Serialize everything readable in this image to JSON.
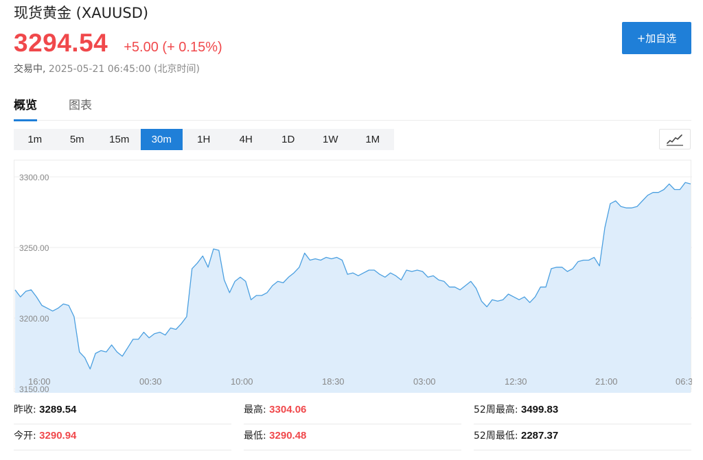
{
  "header": {
    "title": "现货黄金 (XAUUSD)",
    "price": "3294.54",
    "change": "+5.00 (+ 0.15%)",
    "status": "交易中,",
    "time": "2025-05-21 06:45:00 (北京时间)",
    "add_button": "+加自选"
  },
  "tabs": [
    {
      "label": "概览"
    },
    {
      "label": "图表"
    }
  ],
  "intervals": [
    "1m",
    "5m",
    "15m",
    "30m",
    "1H",
    "4H",
    "1D",
    "1W",
    "1M"
  ],
  "active_interval": "30m",
  "chart_type_icon": "line-chart-icon",
  "chart_data": {
    "type": "area",
    "ylim": [
      3150,
      3310
    ],
    "y_ticks": [
      "3150.00",
      "3200.00",
      "3250.00",
      "3300.00"
    ],
    "x_ticks": [
      "16:00",
      "00:30",
      "10:00",
      "18:30",
      "03:00",
      "12:30",
      "21:00",
      "06:3"
    ],
    "values": [
      3220,
      3215,
      3219,
      3220,
      3215,
      3209,
      3207,
      3205,
      3207,
      3210,
      3209,
      3201,
      3176,
      3172,
      3164,
      3175,
      3177,
      3176,
      3181,
      3176,
      3173,
      3179,
      3185,
      3185,
      3190,
      3186,
      3189,
      3190,
      3188,
      3193,
      3192,
      3196,
      3201,
      3235,
      3239,
      3244,
      3236,
      3249,
      3248,
      3227,
      3218,
      3226,
      3229,
      3226,
      3213,
      3216,
      3216,
      3218,
      3223,
      3226,
      3225,
      3229,
      3232,
      3236,
      3246,
      3241,
      3242,
      3241,
      3243,
      3242,
      3243,
      3241,
      3231,
      3232,
      3230,
      3232,
      3234,
      3234,
      3231,
      3229,
      3232,
      3230,
      3227,
      3234,
      3233,
      3234,
      3233,
      3229,
      3230,
      3227,
      3226,
      3222,
      3222,
      3220,
      3223,
      3226,
      3221,
      3212,
      3208,
      3213,
      3212,
      3213,
      3217,
      3215,
      3213,
      3215,
      3211,
      3215,
      3222,
      3222,
      3235,
      3236,
      3236,
      3233,
      3235,
      3240,
      3241,
      3241,
      3243,
      3237,
      3264,
      3281,
      3283,
      3279,
      3278,
      3278,
      3279,
      3283,
      3287,
      3289,
      3289,
      3291,
      3295,
      3291,
      3291,
      3296,
      3295
    ],
    "line_color": "#4a9fe0",
    "fill_color": "#deedfb"
  },
  "stats": [
    {
      "label": "昨收:",
      "value": "3289.54",
      "color": "black"
    },
    {
      "label": "最高:",
      "value": "3304.06",
      "color": "red"
    },
    {
      "label": "52周最高:",
      "value": "3499.83",
      "color": "black"
    },
    {
      "label": "今开:",
      "value": "3290.94",
      "color": "red"
    },
    {
      "label": "最低:",
      "value": "3290.48",
      "color": "red"
    },
    {
      "label": "52周最低:",
      "value": "2287.37",
      "color": "black"
    }
  ],
  "colors": {
    "accent": "#1f7fd8",
    "up": "#f0484b"
  }
}
